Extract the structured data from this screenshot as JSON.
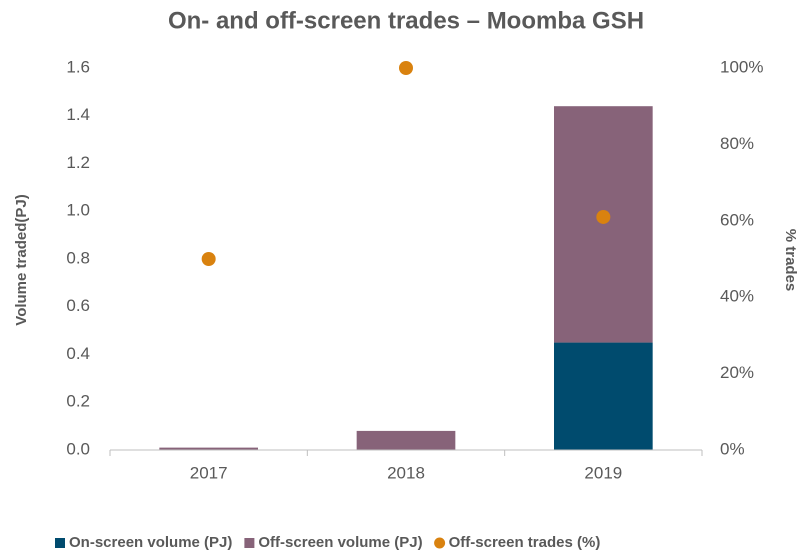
{
  "chart_data": {
    "type": "bar",
    "title": "On- and off-screen trades – Moomba GSH",
    "y_label": "Volume traded(PJ)",
    "y2_label": "% trades",
    "categories": [
      "2017",
      "2018",
      "2019"
    ],
    "stacked": true,
    "series": [
      {
        "name": "On-screen volume (PJ)",
        "color": "#004b6e",
        "values": [
          0,
          0,
          0.45
        ]
      },
      {
        "name": "Off-screen volume (PJ)",
        "color": "#876379",
        "values": [
          0.01,
          0.08,
          0.99
        ]
      },
      {
        "name": "Off-screen trades (%)",
        "color": "#d9820f",
        "type": "scatter",
        "axis": "y2",
        "values": [
          50,
          100,
          61
        ]
      }
    ],
    "ylim": [
      0,
      1.6
    ],
    "yticks": [
      {
        "value": 0,
        "label": "0.0"
      },
      0.2,
      0.4,
      0.6,
      0.8,
      {
        "value": 1,
        "label": "1.0"
      },
      1.2,
      1.4,
      1.6
    ],
    "y2lim": [
      0,
      100
    ],
    "y2ticks": [
      {
        "value": 0,
        "label": "0%"
      },
      {
        "value": 20,
        "label": "20%"
      },
      {
        "value": 40,
        "label": "40%"
      },
      {
        "value": 60,
        "label": "60%"
      },
      {
        "value": 80,
        "label": "80%"
      },
      {
        "value": 100,
        "label": "100%"
      }
    ],
    "grid": false,
    "legend": "bottom"
  }
}
